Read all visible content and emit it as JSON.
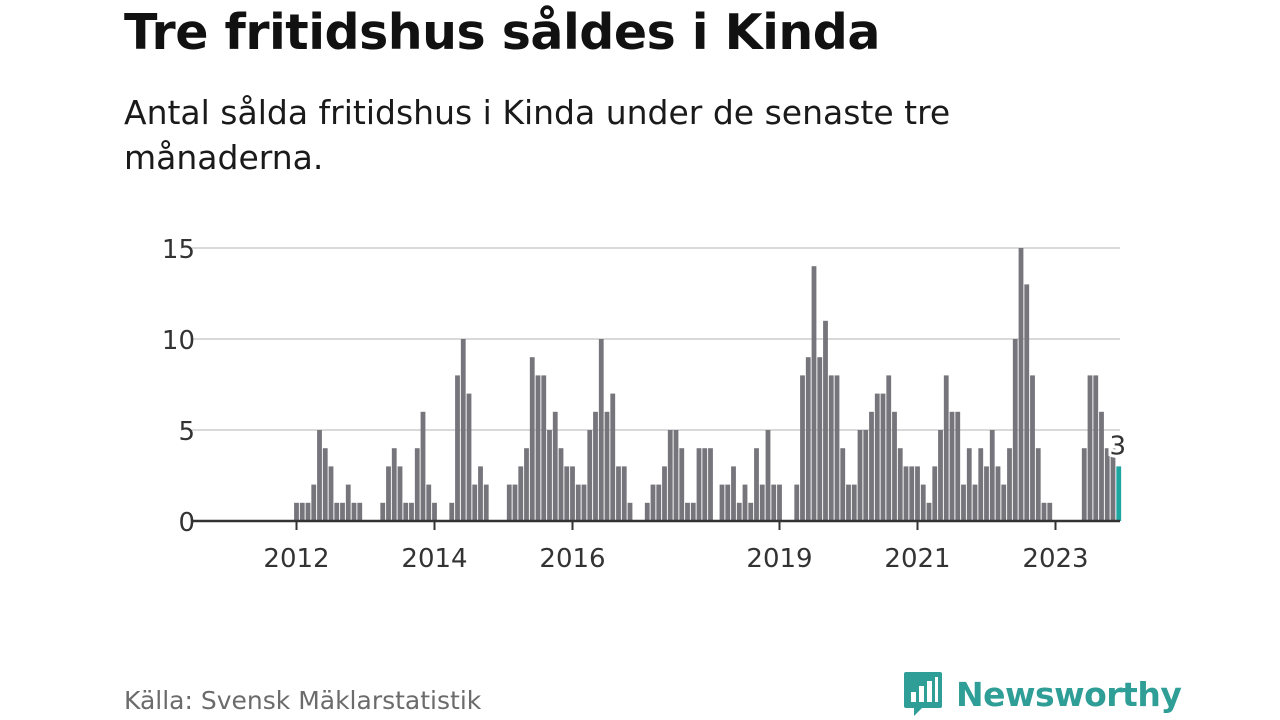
{
  "header": {
    "title": "Tre fritidshus såldes i Kinda",
    "subtitle": "Antal sålda fritidshus i Kinda under de senaste tre månaderna."
  },
  "footer": {
    "source": "Källa: Svensk Mäklarstatistik",
    "brand": "Newsworthy"
  },
  "colors": {
    "bar": "#76757b",
    "highlight": "#1ea7a1",
    "grid": "#d9d9d9",
    "axis": "#333333",
    "brand": "#2e9e96"
  },
  "chart_data": {
    "type": "bar",
    "ylim": [
      0,
      15
    ],
    "yticks": [
      0,
      5,
      10,
      15
    ],
    "grid": true,
    "x_start": "2011-07",
    "xtick_labels": [
      {
        "label": "2012",
        "month": "2012-01"
      },
      {
        "label": "2014",
        "month": "2014-01"
      },
      {
        "label": "2016",
        "month": "2016-01"
      },
      {
        "label": "2019",
        "month": "2019-01"
      },
      {
        "label": "2021",
        "month": "2021-01"
      },
      {
        "label": "2023",
        "month": "2023-01"
      }
    ],
    "values": [
      0,
      0,
      0,
      0,
      0,
      0,
      1,
      1,
      1,
      2,
      5,
      4,
      3,
      1,
      1,
      2,
      1,
      1,
      0,
      0,
      0,
      1,
      3,
      4,
      3,
      1,
      1,
      4,
      6,
      2,
      1,
      0,
      0,
      1,
      8,
      10,
      7,
      2,
      3,
      2,
      0,
      0,
      0,
      2,
      2,
      3,
      4,
      9,
      8,
      8,
      5,
      6,
      4,
      3,
      3,
      2,
      2,
      5,
      6,
      10,
      6,
      7,
      3,
      3,
      1,
      0,
      0,
      1,
      2,
      2,
      3,
      5,
      5,
      4,
      1,
      1,
      4,
      4,
      4,
      0,
      2,
      2,
      3,
      1,
      2,
      1,
      4,
      2,
      5,
      2,
      2,
      0,
      0,
      2,
      8,
      9,
      14,
      9,
      11,
      8,
      8,
      4,
      2,
      2,
      5,
      5,
      6,
      7,
      7,
      8,
      6,
      4,
      3,
      3,
      3,
      2,
      1,
      3,
      5,
      8,
      6,
      6,
      2,
      4,
      2,
      4,
      3,
      5,
      3,
      2,
      4,
      10,
      15,
      13,
      8,
      4,
      1,
      1,
      0,
      0,
      0,
      0,
      0,
      4,
      8,
      8,
      6,
      4,
      4,
      3
    ],
    "highlight_last": true,
    "annotation": "3"
  }
}
